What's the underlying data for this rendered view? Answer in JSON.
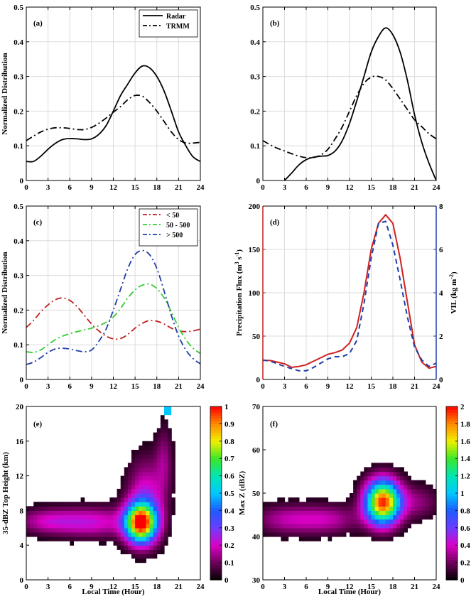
{
  "figure": {
    "xlabel_e": "Local Time (Hour)",
    "xlabel_f": "Local Time (Hour)"
  },
  "chart_data": [
    {
      "panel": "(a)",
      "type": "line",
      "ylabel": "Normalized Distribution",
      "xlim": [
        0,
        24
      ],
      "ylim": [
        0,
        0.5
      ],
      "xticks": [
        0,
        3,
        6,
        9,
        12,
        15,
        18,
        21,
        24
      ],
      "yticks": [
        0,
        0.1,
        0.2,
        0.3,
        0.4,
        0.5
      ],
      "grid": true,
      "legend": "top-right",
      "series": [
        {
          "name": "Radar",
          "style": "solid",
          "color": "#000000",
          "x": [
            0,
            1,
            2,
            3,
            4,
            5,
            6,
            7,
            8,
            9,
            10,
            11,
            12,
            13,
            14,
            15,
            16,
            17,
            18,
            19,
            20,
            21,
            22,
            23,
            24
          ],
          "y": [
            0.055,
            0.055,
            0.07,
            0.09,
            0.107,
            0.118,
            0.121,
            0.12,
            0.118,
            0.12,
            0.133,
            0.158,
            0.2,
            0.245,
            0.278,
            0.31,
            0.33,
            0.325,
            0.3,
            0.258,
            0.2,
            0.14,
            0.1,
            0.068,
            0.055
          ]
        },
        {
          "name": "TRMM",
          "style": "dashdot",
          "color": "#000000",
          "x": [
            0,
            1,
            2,
            3,
            4,
            5,
            6,
            7,
            8,
            9,
            10,
            11,
            12,
            13,
            14,
            15,
            16,
            17,
            18,
            19,
            20,
            21,
            22,
            23,
            24
          ],
          "y": [
            0.115,
            0.128,
            0.14,
            0.148,
            0.152,
            0.152,
            0.15,
            0.147,
            0.147,
            0.153,
            0.165,
            0.18,
            0.197,
            0.213,
            0.233,
            0.245,
            0.243,
            0.225,
            0.2,
            0.17,
            0.14,
            0.118,
            0.108,
            0.108,
            0.11
          ]
        }
      ]
    },
    {
      "panel": "(b)",
      "type": "line",
      "xlim": [
        0,
        24
      ],
      "ylim": [
        0,
        0.5
      ],
      "xticks": [
        0,
        3,
        6,
        9,
        12,
        15,
        18,
        21,
        24
      ],
      "yticks": [
        0,
        0.1,
        0.2,
        0.3,
        0.4,
        0.5
      ],
      "grid": true,
      "series": [
        {
          "style": "solid",
          "color": "#000000",
          "x": [
            3,
            4,
            5,
            6,
            7,
            8,
            9,
            10,
            11,
            12,
            13,
            14,
            15,
            16,
            17,
            18,
            19,
            20,
            21,
            22,
            23,
            24
          ],
          "y": [
            0.0,
            0.022,
            0.045,
            0.06,
            0.067,
            0.07,
            0.072,
            0.085,
            0.115,
            0.165,
            0.23,
            0.3,
            0.37,
            0.415,
            0.44,
            0.42,
            0.37,
            0.29,
            0.19,
            0.11,
            0.05,
            0.0
          ]
        },
        {
          "style": "dashdot",
          "color": "#000000",
          "x": [
            0,
            1,
            2,
            3,
            4,
            5,
            6,
            7,
            8,
            9,
            10,
            11,
            12,
            13,
            14,
            15,
            16,
            17,
            18,
            19,
            20,
            21,
            22,
            23,
            24
          ],
          "y": [
            0.115,
            0.103,
            0.093,
            0.085,
            0.077,
            0.07,
            0.066,
            0.066,
            0.073,
            0.09,
            0.12,
            0.155,
            0.2,
            0.245,
            0.28,
            0.298,
            0.3,
            0.29,
            0.265,
            0.235,
            0.205,
            0.175,
            0.155,
            0.135,
            0.12
          ]
        }
      ]
    },
    {
      "panel": "(c)",
      "type": "line",
      "ylabel": "Normalized Distribution",
      "xlim": [
        0,
        24
      ],
      "ylim": [
        0,
        0.5
      ],
      "xticks": [
        0,
        3,
        6,
        9,
        12,
        15,
        18,
        21,
        24
      ],
      "yticks": [
        0,
        0.1,
        0.2,
        0.3,
        0.4,
        0.5
      ],
      "grid": true,
      "legend": "top-right",
      "series": [
        {
          "name": "< 50",
          "style": "dashdot",
          "color": "#c0201f",
          "x": [
            0,
            1,
            2,
            3,
            4,
            5,
            6,
            7,
            8,
            9,
            10,
            11,
            12,
            13,
            14,
            15,
            16,
            17,
            18,
            19,
            20,
            21,
            22,
            23,
            24
          ],
          "y": [
            0.15,
            0.17,
            0.195,
            0.215,
            0.23,
            0.235,
            0.228,
            0.21,
            0.185,
            0.16,
            0.14,
            0.125,
            0.117,
            0.118,
            0.13,
            0.148,
            0.162,
            0.17,
            0.168,
            0.16,
            0.148,
            0.14,
            0.138,
            0.14,
            0.145
          ]
        },
        {
          "name": "50 - 500",
          "style": "dashdot",
          "color": "#33cc33",
          "x": [
            0,
            1,
            2,
            3,
            4,
            5,
            6,
            7,
            8,
            9,
            10,
            11,
            12,
            13,
            14,
            15,
            16,
            17,
            18,
            19,
            20,
            21,
            22,
            23,
            24
          ],
          "y": [
            0.08,
            0.078,
            0.085,
            0.1,
            0.115,
            0.125,
            0.132,
            0.138,
            0.143,
            0.148,
            0.155,
            0.165,
            0.18,
            0.205,
            0.235,
            0.258,
            0.272,
            0.275,
            0.262,
            0.235,
            0.195,
            0.15,
            0.115,
            0.09,
            0.075
          ]
        },
        {
          "name": "> 500",
          "style": "dashdot",
          "color": "#1f3fa8",
          "x": [
            0,
            1,
            2,
            3,
            4,
            5,
            6,
            7,
            8,
            9,
            10,
            11,
            12,
            13,
            14,
            15,
            16,
            17,
            18,
            19,
            20,
            21,
            22,
            23,
            24
          ],
          "y": [
            0.043,
            0.05,
            0.063,
            0.078,
            0.088,
            0.09,
            0.088,
            0.083,
            0.08,
            0.085,
            0.11,
            0.145,
            0.2,
            0.26,
            0.32,
            0.36,
            0.372,
            0.36,
            0.32,
            0.255,
            0.185,
            0.125,
            0.085,
            0.06,
            0.045
          ]
        }
      ]
    },
    {
      "panel": "(d)",
      "type": "line",
      "xlim": [
        0,
        24
      ],
      "xticks": [
        0,
        3,
        6,
        9,
        12,
        15,
        18,
        21,
        24
      ],
      "grid": true,
      "y_left": {
        "label": "Precipitation Flux (m",
        "sup": "3",
        "mid": " s",
        "sup2": "-1",
        "end": ")",
        "ylim": [
          0,
          200
        ],
        "yticks": [
          0,
          50,
          100,
          150,
          200
        ],
        "color": "#c0201f"
      },
      "y_right": {
        "label": "VIL (kg m",
        "sup": "-2",
        "end": ")",
        "ylim": [
          0,
          8
        ],
        "yticks": [
          0,
          2,
          4,
          6,
          8
        ],
        "color": "#1f3fa8"
      },
      "series": [
        {
          "axis": "left",
          "style": "solid",
          "color": "#d02020",
          "x": [
            0,
            1,
            2,
            3,
            4,
            5,
            6,
            7,
            8,
            9,
            10,
            11,
            12,
            13,
            14,
            15,
            16,
            17,
            18,
            19,
            20,
            21,
            22,
            23,
            24
          ],
          "y": [
            22,
            22,
            20,
            18,
            14,
            15,
            17,
            21,
            25,
            29,
            31,
            34,
            42,
            60,
            100,
            150,
            180,
            190,
            180,
            140,
            90,
            40,
            20,
            13,
            15
          ]
        },
        {
          "axis": "right",
          "style": "dashed",
          "color": "#1f3fa8",
          "x": [
            0,
            1,
            2,
            3,
            4,
            5,
            6,
            7,
            8,
            9,
            10,
            11,
            12,
            13,
            14,
            15,
            16,
            17,
            18,
            19,
            20,
            21,
            22,
            23,
            24
          ],
          "y": [
            0.9,
            0.85,
            0.72,
            0.6,
            0.5,
            0.4,
            0.4,
            0.55,
            0.75,
            0.95,
            1.05,
            1.05,
            1.2,
            1.8,
            3.5,
            5.6,
            7.2,
            7.3,
            6.2,
            4.6,
            2.9,
            1.5,
            0.9,
            0.6,
            0.75
          ]
        }
      ]
    },
    {
      "panel": "(e)",
      "type": "heatmap",
      "ylabel": "35-dBZ Top Height (km)",
      "xlim": [
        0,
        24
      ],
      "ylim": [
        0,
        20
      ],
      "xticks": [
        0,
        3,
        6,
        9,
        12,
        15,
        18,
        21,
        24
      ],
      "yticks": [
        0,
        4,
        8,
        12,
        16,
        20
      ],
      "colorbar": {
        "min": 0,
        "max": 1,
        "ticks": [
          0,
          0.1,
          0.2,
          0.3,
          0.4,
          0.5,
          0.6,
          0.7,
          0.8,
          0.9,
          1
        ]
      },
      "blobs": [
        {
          "x": 3,
          "y": 6.8,
          "sx": 4.5,
          "sy": 1.5,
          "a": 0.18
        },
        {
          "x": 9.5,
          "y": 6.7,
          "sx": 5,
          "sy": 1.8,
          "a": 0.2
        },
        {
          "x": 15.8,
          "y": 6.6,
          "sx": 2.1,
          "sy": 2.2,
          "a": 0.95
        },
        {
          "x": 16.5,
          "y": 9.5,
          "sx": 2.6,
          "sy": 4.5,
          "a": 0.22
        },
        {
          "x": 19,
          "y": 14,
          "sx": 1.2,
          "sy": 4,
          "a": 0.12
        }
      ],
      "max_cell": {
        "x": 19.5,
        "y": 19.5,
        "v": 0.5
      }
    },
    {
      "panel": "(f)",
      "type": "heatmap",
      "ylabel": "Max Z (dBZ)",
      "xlim": [
        0,
        24
      ],
      "ylim": [
        30,
        70
      ],
      "xticks": [
        0,
        3,
        6,
        9,
        12,
        15,
        18,
        21,
        24
      ],
      "yticks": [
        30,
        40,
        50,
        60,
        70
      ],
      "colorbar": {
        "min": 0,
        "max": 2,
        "ticks": [
          0,
          0.2,
          0.4,
          0.6,
          0.8,
          1,
          1.2,
          1.4,
          1.6,
          1.8,
          2
        ]
      },
      "blobs": [
        {
          "x": 3,
          "y": 44,
          "sx": 4.5,
          "sy": 3.5,
          "a": 0.3
        },
        {
          "x": 9,
          "y": 44,
          "sx": 4.5,
          "sy": 3.5,
          "a": 0.32
        },
        {
          "x": 16.6,
          "y": 48,
          "sx": 2.4,
          "sy": 5,
          "a": 1.95
        },
        {
          "x": 21.5,
          "y": 48,
          "sx": 3,
          "sy": 4,
          "a": 0.25
        }
      ]
    }
  ]
}
